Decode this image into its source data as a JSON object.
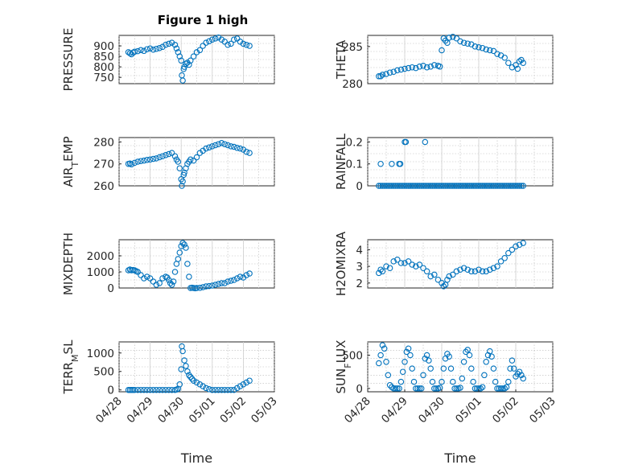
{
  "figure": {
    "title": "Figure 1 high"
  },
  "colors": {
    "marker": "#0072BD",
    "axis": "#262626"
  },
  "chart_data": [
    {
      "type": "scatter",
      "ylabel": "PRESSURE",
      "ylim": [
        720,
        950
      ],
      "yticks": [
        750,
        800,
        850,
        900
      ],
      "xlim": [
        0,
        5
      ],
      "x": [
        0.3,
        0.35,
        0.4,
        0.45,
        0.5,
        0.6,
        0.7,
        0.8,
        0.9,
        1.0,
        1.1,
        1.2,
        1.3,
        1.4,
        1.5,
        1.6,
        1.7,
        1.8,
        1.85,
        1.9,
        1.95,
        2.0,
        2.02,
        2.05,
        2.08,
        2.1,
        2.15,
        2.2,
        2.25,
        2.3,
        2.4,
        2.5,
        2.6,
        2.7,
        2.8,
        2.9,
        3.0,
        3.1,
        3.2,
        3.3,
        3.4,
        3.5,
        3.6,
        3.7,
        3.8,
        3.9,
        4.0,
        4.1,
        4.2
      ],
      "y": [
        870,
        865,
        860,
        868,
        872,
        875,
        880,
        876,
        884,
        888,
        882,
        886,
        890,
        895,
        905,
        910,
        915,
        905,
        888,
        870,
        850,
        830,
        760,
        735,
        790,
        800,
        815,
        820,
        810,
        830,
        850,
        870,
        880,
        900,
        915,
        922,
        930,
        935,
        940,
        930,
        920,
        905,
        910,
        930,
        935,
        920,
        910,
        905,
        900
      ]
    },
    {
      "type": "scatter",
      "ylabel": "THETA",
      "ylim": [
        280,
        286.5
      ],
      "yticks": [
        280,
        285
      ],
      "xlim": [
        0,
        5
      ],
      "x": [
        0.3,
        0.35,
        0.4,
        0.5,
        0.6,
        0.7,
        0.8,
        0.9,
        1.0,
        1.1,
        1.2,
        1.3,
        1.4,
        1.5,
        1.6,
        1.7,
        1.8,
        1.9,
        1.95,
        2.0,
        2.05,
        2.1,
        2.15,
        2.2,
        2.3,
        2.4,
        2.5,
        2.6,
        2.7,
        2.8,
        2.9,
        3.0,
        3.1,
        3.2,
        3.3,
        3.4,
        3.5,
        3.6,
        3.7,
        3.8,
        3.9,
        4.0,
        4.05,
        4.1,
        4.15,
        4.2
      ],
      "y": [
        281,
        281,
        281.2,
        281.3,
        281.5,
        281.6,
        281.8,
        281.9,
        282,
        282.1,
        282.2,
        282.1,
        282.3,
        282.4,
        282.2,
        282.3,
        282.5,
        282.4,
        282.3,
        284.5,
        286.1,
        285.8,
        285.5,
        286.2,
        286.3,
        286.1,
        285.7,
        285.5,
        285.4,
        285.3,
        285,
        284.9,
        284.8,
        284.6,
        284.5,
        284.4,
        284,
        283.8,
        283.5,
        282.8,
        282.2,
        282.5,
        282,
        283,
        283.2,
        282.8
      ]
    },
    {
      "type": "scatter",
      "ylabel": "AIR_TEMP",
      "ylim": [
        260,
        282
      ],
      "yticks": [
        260,
        270,
        280
      ],
      "xlim": [
        0,
        5
      ],
      "x": [
        0.3,
        0.35,
        0.4,
        0.5,
        0.6,
        0.7,
        0.8,
        0.9,
        1.0,
        1.1,
        1.2,
        1.3,
        1.4,
        1.5,
        1.6,
        1.7,
        1.8,
        1.85,
        1.9,
        1.95,
        2.0,
        2.02,
        2.05,
        2.08,
        2.1,
        2.15,
        2.2,
        2.25,
        2.3,
        2.4,
        2.5,
        2.6,
        2.7,
        2.8,
        2.9,
        3.0,
        3.1,
        3.2,
        3.3,
        3.4,
        3.5,
        3.6,
        3.7,
        3.8,
        3.9,
        4.0,
        4.1,
        4.2
      ],
      "y": [
        270,
        270.2,
        269.8,
        270.5,
        271,
        271.3,
        271.5,
        271.8,
        272,
        272.3,
        272.5,
        273,
        273.5,
        274,
        274.5,
        275,
        273.5,
        272,
        271,
        268,
        263,
        260,
        262,
        265,
        266,
        268,
        270,
        271,
        272,
        271.5,
        273,
        275,
        276,
        277,
        277.5,
        278,
        278.5,
        279,
        279.5,
        279,
        278.5,
        278,
        277.8,
        277.3,
        277,
        276.5,
        275.5,
        275
      ]
    },
    {
      "type": "scatter",
      "ylabel": "RAINFALL",
      "ylim": [
        0,
        0.22
      ],
      "yticks": [
        0,
        0.1,
        0.2
      ],
      "xlim": [
        0,
        5
      ],
      "x": [
        0.3,
        0.35,
        0.4,
        0.45,
        0.5,
        0.55,
        0.6,
        0.65,
        0.7,
        0.75,
        0.8,
        0.85,
        0.9,
        0.95,
        1.0,
        1.05,
        1.1,
        1.15,
        1.2,
        1.25,
        1.3,
        1.35,
        1.4,
        1.45,
        1.5,
        1.55,
        1.6,
        1.65,
        1.7,
        1.75,
        1.8,
        1.85,
        1.9,
        1.95,
        2.0,
        2.05,
        2.1,
        2.15,
        2.2,
        2.25,
        2.3,
        2.35,
        2.4,
        2.45,
        2.5,
        2.55,
        2.6,
        2.65,
        2.7,
        2.75,
        2.8,
        2.85,
        2.9,
        2.95,
        3.0,
        3.05,
        3.1,
        3.15,
        3.2,
        3.25,
        3.3,
        3.35,
        3.4,
        3.45,
        3.5,
        3.55,
        3.6,
        3.65,
        3.7,
        3.75,
        3.8,
        3.85,
        3.9,
        3.95,
        4.0,
        4.05,
        4.1,
        4.15,
        4.2,
        0.35,
        0.65,
        0.85,
        0.88,
        1.0,
        1.03,
        1.55
      ],
      "y": [
        0,
        0,
        0,
        0,
        0,
        0,
        0,
        0,
        0,
        0,
        0,
        0,
        0,
        0,
        0,
        0,
        0,
        0,
        0,
        0,
        0,
        0,
        0,
        0,
        0,
        0,
        0,
        0,
        0,
        0,
        0,
        0,
        0,
        0,
        0,
        0,
        0,
        0,
        0,
        0,
        0,
        0,
        0,
        0,
        0,
        0,
        0,
        0,
        0,
        0,
        0,
        0,
        0,
        0,
        0,
        0,
        0,
        0,
        0,
        0,
        0,
        0,
        0,
        0,
        0,
        0,
        0,
        0,
        0,
        0,
        0,
        0,
        0,
        0,
        0,
        0,
        0,
        0,
        0,
        0.1,
        0.1,
        0.1,
        0.1,
        0.2,
        0.2,
        0.2
      ]
    },
    {
      "type": "scatter",
      "ylabel": "MIXDEPTH",
      "ylim": [
        0,
        3000
      ],
      "yticks": [
        0,
        1000,
        2000
      ],
      "xlim": [
        0,
        5
      ],
      "x": [
        0.3,
        0.35,
        0.4,
        0.45,
        0.5,
        0.55,
        0.6,
        0.7,
        0.8,
        0.9,
        1.0,
        1.1,
        1.2,
        1.3,
        1.4,
        1.5,
        1.55,
        1.6,
        1.65,
        1.7,
        1.75,
        1.8,
        1.85,
        1.9,
        1.95,
        2.0,
        2.05,
        2.1,
        2.15,
        2.2,
        2.25,
        2.3,
        2.35,
        2.4,
        2.45,
        2.5,
        2.6,
        2.7,
        2.8,
        2.9,
        3.0,
        3.1,
        3.2,
        3.3,
        3.4,
        3.5,
        3.6,
        3.7,
        3.8,
        3.9,
        4.0,
        4.1,
        4.2
      ],
      "y": [
        1100,
        1150,
        1100,
        1120,
        1100,
        1050,
        1000,
        800,
        600,
        700,
        600,
        400,
        200,
        300,
        600,
        700,
        650,
        500,
        300,
        200,
        400,
        1000,
        1500,
        1800,
        2200,
        2600,
        2800,
        2700,
        2500,
        1500,
        700,
        0,
        20,
        0,
        -20,
        0,
        10,
        50,
        100,
        120,
        150,
        200,
        250,
        300,
        300,
        400,
        450,
        500,
        600,
        700,
        650,
        800,
        900
      ]
    },
    {
      "type": "scatter",
      "ylabel": "H2OMIXRA",
      "ylim": [
        1.7,
        4.6
      ],
      "yticks": [
        2,
        3,
        4
      ],
      "xlim": [
        0,
        5
      ],
      "x": [
        0.3,
        0.35,
        0.4,
        0.5,
        0.6,
        0.7,
        0.8,
        0.9,
        1.0,
        1.1,
        1.2,
        1.3,
        1.4,
        1.5,
        1.6,
        1.7,
        1.8,
        1.9,
        2.0,
        2.05,
        2.1,
        2.15,
        2.2,
        2.3,
        2.4,
        2.5,
        2.6,
        2.7,
        2.8,
        2.9,
        3.0,
        3.1,
        3.2,
        3.3,
        3.4,
        3.5,
        3.6,
        3.7,
        3.8,
        3.9,
        4.0,
        4.1,
        4.2
      ],
      "y": [
        2.6,
        2.8,
        2.7,
        3.0,
        2.9,
        3.3,
        3.4,
        3.2,
        3.2,
        3.3,
        3.1,
        3.0,
        3.1,
        2.9,
        2.7,
        2.4,
        2.5,
        2.2,
        2.0,
        1.8,
        1.9,
        2.2,
        2.4,
        2.5,
        2.7,
        2.8,
        2.9,
        2.8,
        2.7,
        2.7,
        2.8,
        2.7,
        2.7,
        2.8,
        2.9,
        3.0,
        3.3,
        3.5,
        3.8,
        4.0,
        4.2,
        4.3,
        4.4
      ]
    },
    {
      "type": "scatter",
      "ylabel": "TERR_MSL",
      "ylim": [
        -50,
        1300
      ],
      "yticks": [
        0,
        500,
        1000
      ],
      "xlim": [
        0,
        5
      ],
      "x": [
        0.3,
        0.35,
        0.4,
        0.45,
        0.5,
        0.6,
        0.7,
        0.8,
        0.9,
        1.0,
        1.1,
        1.2,
        1.3,
        1.4,
        1.5,
        1.6,
        1.7,
        1.8,
        1.85,
        1.9,
        1.95,
        2.0,
        2.02,
        2.05,
        2.1,
        2.15,
        2.2,
        2.25,
        2.3,
        2.35,
        2.4,
        2.5,
        2.6,
        2.7,
        2.8,
        2.9,
        3.0,
        3.1,
        3.2,
        3.3,
        3.4,
        3.5,
        3.6,
        3.7,
        3.8,
        3.9,
        4.0,
        4.1,
        4.2
      ],
      "y": [
        0,
        0,
        0,
        0,
        0,
        0,
        0,
        0,
        0,
        0,
        0,
        0,
        0,
        0,
        0,
        0,
        0,
        0,
        10,
        30,
        150,
        560,
        1180,
        1050,
        800,
        650,
        500,
        400,
        350,
        300,
        250,
        200,
        150,
        100,
        50,
        20,
        0,
        0,
        0,
        0,
        0,
        0,
        0,
        0,
        50,
        100,
        150,
        200,
        250
      ]
    },
    {
      "type": "scatter",
      "ylabel": "SUN_FLUX",
      "ylim": [
        -50,
        700
      ],
      "yticks": [
        0,
        500
      ],
      "xlim": [
        0,
        5
      ],
      "xticks": [
        "04/28",
        "04/29",
        "04/30",
        "05/01",
        "05/02",
        "05/03"
      ],
      "xlabel": "Time",
      "x": [
        0.3,
        0.35,
        0.4,
        0.45,
        0.5,
        0.55,
        0.6,
        0.65,
        0.7,
        0.75,
        0.8,
        0.85,
        0.9,
        0.95,
        1.0,
        1.05,
        1.1,
        1.15,
        1.2,
        1.25,
        1.3,
        1.35,
        1.4,
        1.45,
        1.5,
        1.55,
        1.6,
        1.65,
        1.7,
        1.75,
        1.8,
        1.85,
        1.9,
        1.95,
        2.0,
        2.05,
        2.1,
        2.15,
        2.2,
        2.25,
        2.3,
        2.35,
        2.4,
        2.45,
        2.5,
        2.55,
        2.6,
        2.65,
        2.7,
        2.75,
        2.8,
        2.85,
        2.9,
        2.95,
        3.0,
        3.05,
        3.1,
        3.15,
        3.2,
        3.25,
        3.3,
        3.35,
        3.4,
        3.45,
        3.5,
        3.55,
        3.6,
        3.65,
        3.7,
        3.75,
        3.8,
        3.85,
        3.9,
        3.95,
        4.0,
        4.05,
        4.1,
        4.15,
        4.2
      ],
      "y": [
        380,
        500,
        650,
        600,
        400,
        200,
        50,
        20,
        0,
        0,
        0,
        0,
        100,
        250,
        400,
        550,
        600,
        500,
        300,
        100,
        0,
        0,
        0,
        0,
        200,
        450,
        500,
        420,
        300,
        100,
        0,
        0,
        0,
        10,
        100,
        300,
        450,
        520,
        480,
        300,
        100,
        0,
        0,
        0,
        10,
        150,
        400,
        550,
        580,
        500,
        300,
        100,
        0,
        0,
        0,
        0,
        20,
        200,
        400,
        500,
        560,
        480,
        300,
        100,
        0,
        0,
        0,
        0,
        0,
        20,
        100,
        300,
        420,
        300,
        180,
        220,
        250,
        200,
        150
      ]
    }
  ]
}
